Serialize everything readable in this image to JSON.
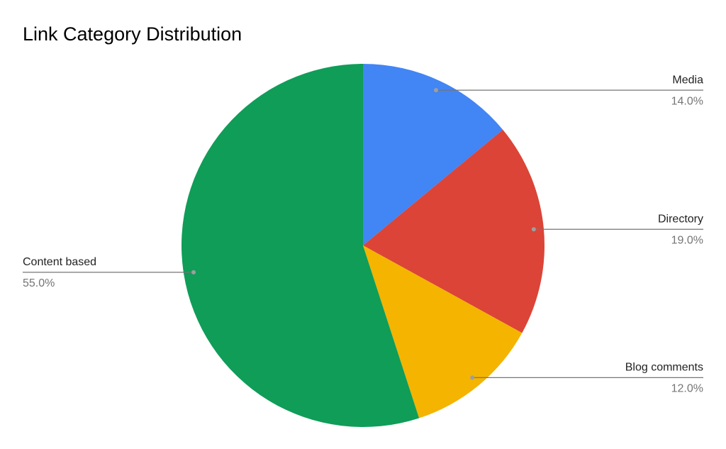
{
  "chart_data": {
    "type": "pie",
    "title": "Link Category Distribution",
    "categories": [
      "Media",
      "Directory",
      "Blog comments",
      "Content based"
    ],
    "values": [
      14,
      19,
      12,
      55
    ],
    "value_labels": [
      "14.0%",
      "19.0%",
      "12.0%",
      "55.0%"
    ],
    "colors": [
      "#4285f4",
      "#db4437",
      "#f4b400",
      "#0f9d58"
    ]
  }
}
